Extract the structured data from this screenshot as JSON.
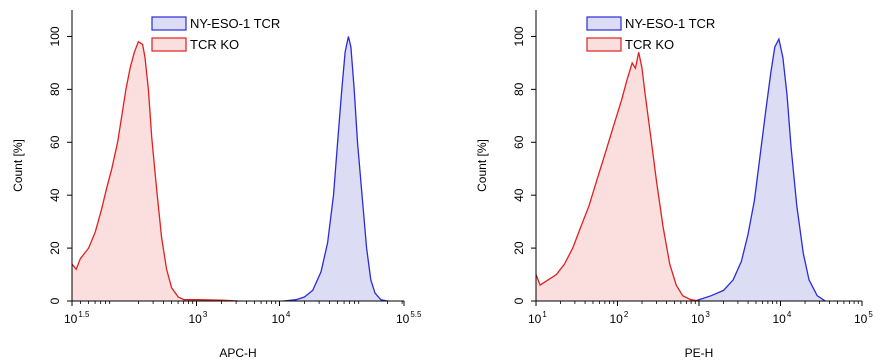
{
  "chart_data": [
    {
      "type": "area",
      "title": "",
      "xlabel": "APC-H",
      "ylabel": "Count [%]",
      "xscale": "log",
      "xlim": [
        1.5,
        5.5
      ],
      "ylim": [
        0,
        110
      ],
      "grid": false,
      "legend_position": "top",
      "x_ticks": [
        {
          "exp": "1.5",
          "value": 1.5
        },
        {
          "exp": "3",
          "value": 3
        },
        {
          "exp": "4",
          "value": 4
        },
        {
          "exp": "5.5",
          "value": 5.5
        }
      ],
      "y_ticks": [
        0,
        20,
        40,
        60,
        80,
        100
      ],
      "series": [
        {
          "name": "NY-ESO-1 TCR",
          "color": "#2b2bd8",
          "fill": "#dcdcf5",
          "points": [
            [
              4.05,
              0
            ],
            [
              4.2,
              0.5
            ],
            [
              4.3,
              1.5
            ],
            [
              4.4,
              4
            ],
            [
              4.5,
              11
            ],
            [
              4.58,
              22
            ],
            [
              4.65,
              40
            ],
            [
              4.7,
              60
            ],
            [
              4.75,
              80
            ],
            [
              4.79,
              94
            ],
            [
              4.83,
              100
            ],
            [
              4.86,
              96
            ],
            [
              4.9,
              80
            ],
            [
              4.94,
              60
            ],
            [
              5.0,
              38
            ],
            [
              5.05,
              20
            ],
            [
              5.1,
              8
            ],
            [
              5.15,
              3
            ],
            [
              5.22,
              0.5
            ],
            [
              5.3,
              0
            ]
          ]
        },
        {
          "name": "TCR KO",
          "color": "#e02020",
          "fill": "#fbdede",
          "points": [
            [
              1.5,
              14
            ],
            [
              1.55,
              12
            ],
            [
              1.6,
              16
            ],
            [
              1.7,
              20
            ],
            [
              1.78,
              26
            ],
            [
              1.85,
              34
            ],
            [
              1.92,
              43
            ],
            [
              1.98,
              50
            ],
            [
              2.05,
              60
            ],
            [
              2.1,
              70
            ],
            [
              2.15,
              80
            ],
            [
              2.2,
              88
            ],
            [
              2.25,
              94
            ],
            [
              2.3,
              98
            ],
            [
              2.35,
              97
            ],
            [
              2.38,
              92
            ],
            [
              2.42,
              80
            ],
            [
              2.46,
              62
            ],
            [
              2.52,
              42
            ],
            [
              2.58,
              24
            ],
            [
              2.64,
              12
            ],
            [
              2.7,
              5
            ],
            [
              2.78,
              1.5
            ],
            [
              2.85,
              0.5
            ],
            [
              3.0,
              0.5
            ],
            [
              3.3,
              0.3
            ],
            [
              3.5,
              0
            ]
          ]
        }
      ]
    },
    {
      "type": "area",
      "title": "",
      "xlabel": "PE-H",
      "ylabel": "Count [%]",
      "xscale": "log",
      "xlim": [
        1,
        5
      ],
      "ylim": [
        0,
        110
      ],
      "grid": false,
      "legend_position": "top",
      "x_ticks": [
        {
          "exp": "1",
          "value": 1
        },
        {
          "exp": "2",
          "value": 2
        },
        {
          "exp": "3",
          "value": 3
        },
        {
          "exp": "4",
          "value": 4
        },
        {
          "exp": "5",
          "value": 5
        }
      ],
      "y_ticks": [
        0,
        20,
        40,
        60,
        80,
        100
      ],
      "series": [
        {
          "name": "NY-ESO-1 TCR",
          "color": "#2b2bd8",
          "fill": "#dcdcf5",
          "points": [
            [
              2.95,
              0
            ],
            [
              3.05,
              1
            ],
            [
              3.15,
              2
            ],
            [
              3.3,
              4
            ],
            [
              3.42,
              8
            ],
            [
              3.52,
              15
            ],
            [
              3.6,
              25
            ],
            [
              3.68,
              38
            ],
            [
              3.75,
              55
            ],
            [
              3.82,
              72
            ],
            [
              3.88,
              86
            ],
            [
              3.93,
              96
            ],
            [
              3.98,
              99
            ],
            [
              4.03,
              92
            ],
            [
              4.08,
              78
            ],
            [
              4.13,
              58
            ],
            [
              4.2,
              36
            ],
            [
              4.28,
              18
            ],
            [
              4.35,
              8
            ],
            [
              4.45,
              2
            ],
            [
              4.55,
              0
            ]
          ]
        },
        {
          "name": "TCR KO",
          "color": "#e02020",
          "fill": "#fbdede",
          "points": [
            [
              1.0,
              10
            ],
            [
              1.05,
              6
            ],
            [
              1.15,
              8
            ],
            [
              1.25,
              10
            ],
            [
              1.35,
              14
            ],
            [
              1.45,
              20
            ],
            [
              1.55,
              28
            ],
            [
              1.65,
              36
            ],
            [
              1.75,
              46
            ],
            [
              1.85,
              56
            ],
            [
              1.95,
              66
            ],
            [
              2.05,
              76
            ],
            [
              2.12,
              84
            ],
            [
              2.18,
              90
            ],
            [
              2.22,
              88
            ],
            [
              2.26,
              94
            ],
            [
              2.3,
              88
            ],
            [
              2.34,
              78
            ],
            [
              2.4,
              64
            ],
            [
              2.48,
              45
            ],
            [
              2.56,
              28
            ],
            [
              2.64,
              14
            ],
            [
              2.72,
              6
            ],
            [
              2.8,
              2
            ],
            [
              2.9,
              0.5
            ],
            [
              3.0,
              0
            ]
          ]
        }
      ]
    }
  ]
}
